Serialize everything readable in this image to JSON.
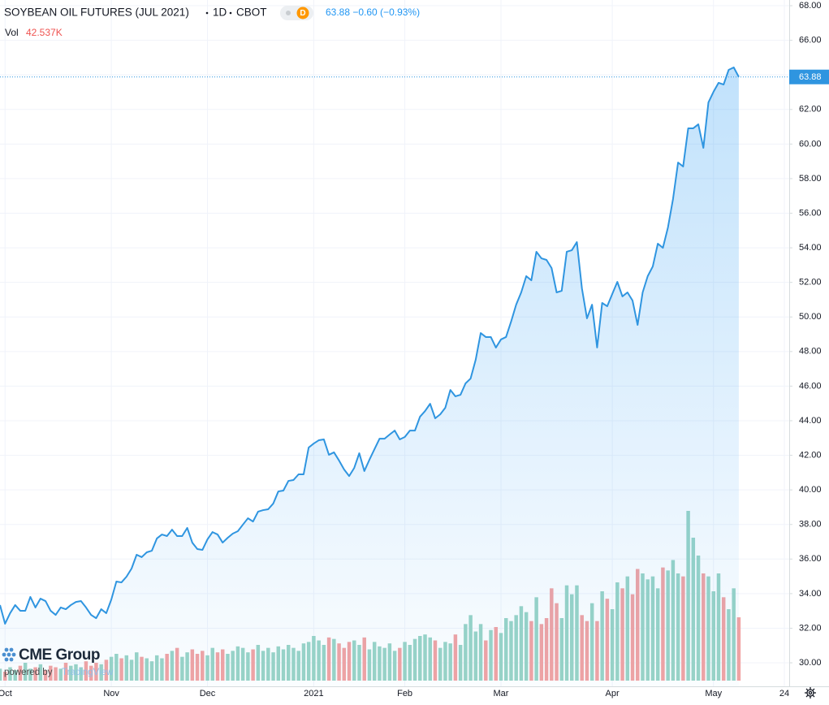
{
  "chart_data": {
    "type": "line",
    "title": "SOYBEAN OIL FUTURES (JUL 2021)",
    "interval": "1D",
    "exchange": "CBOT",
    "badge": "D",
    "quote": "63.88 −0.60 (−0.93%)",
    "volume_title": "Vol",
    "volume_text": "42.537K",
    "last_label": "63.88",
    "logo": "CME Group",
    "powered_by": "powered by",
    "powered_brand": "TradingView",
    "color": "#2f95e0",
    "grid": true,
    "ylim": [
      28.64,
      68.33
    ],
    "yticks": [
      {
        "value": 30,
        "label": "30.00"
      },
      {
        "value": 32,
        "label": "32.00"
      },
      {
        "value": 34,
        "label": "34.00"
      },
      {
        "value": 36,
        "label": "36.00"
      },
      {
        "value": 38,
        "label": "38.00"
      },
      {
        "value": 40,
        "label": "40.00"
      },
      {
        "value": 42,
        "label": "42.00"
      },
      {
        "value": 44,
        "label": "44.00"
      },
      {
        "value": 46,
        "label": "46.00"
      },
      {
        "value": 48,
        "label": "48.00"
      },
      {
        "value": 50,
        "label": "50.00"
      },
      {
        "value": 52,
        "label": "52.00"
      },
      {
        "value": 54,
        "label": "54.00"
      },
      {
        "value": 56,
        "label": "56.00"
      },
      {
        "value": 58,
        "label": "58.00"
      },
      {
        "value": 60,
        "label": "60.00"
      },
      {
        "value": 62,
        "label": "62.00"
      },
      {
        "value": 64,
        "label": "64.00"
      },
      {
        "value": 66,
        "label": "66.00"
      },
      {
        "value": 68,
        "label": "68.00"
      }
    ],
    "categories": [
      null,
      "Oct",
      null,
      null,
      null,
      null,
      null,
      null,
      null,
      null,
      null,
      null,
      null,
      null,
      null,
      null,
      null,
      null,
      null,
      null,
      null,
      null,
      "Nov",
      null,
      null,
      null,
      null,
      null,
      null,
      null,
      null,
      null,
      null,
      null,
      null,
      null,
      null,
      null,
      null,
      null,
      null,
      "Dec",
      null,
      null,
      null,
      null,
      null,
      null,
      null,
      null,
      null,
      null,
      null,
      null,
      null,
      null,
      null,
      null,
      null,
      null,
      null,
      null,
      "2021",
      null,
      null,
      null,
      null,
      null,
      null,
      null,
      null,
      null,
      null,
      null,
      null,
      null,
      null,
      null,
      null,
      null,
      "Feb",
      null,
      null,
      null,
      null,
      null,
      null,
      null,
      null,
      null,
      null,
      null,
      null,
      null,
      null,
      null,
      null,
      null,
      null,
      "Mar",
      null,
      null,
      null,
      null,
      null,
      null,
      null,
      null,
      null,
      null,
      null,
      null,
      null,
      null,
      null,
      null,
      null,
      null,
      null,
      null,
      null,
      "Apr",
      null,
      null,
      null,
      null,
      null,
      null,
      null,
      null,
      null,
      null,
      null,
      null,
      null,
      null,
      null,
      null,
      null,
      null,
      null,
      "May",
      null,
      null,
      null,
      null,
      null,
      null,
      null,
      null,
      null,
      null,
      null,
      null,
      null,
      "24"
    ],
    "values": [
      33.34,
      32.26,
      32.87,
      33.34,
      33.01,
      33.01,
      33.81,
      33.2,
      33.71,
      33.57,
      33.01,
      32.77,
      33.2,
      33.1,
      33.34,
      33.52,
      33.57,
      33.2,
      32.77,
      32.58,
      33.1,
      32.87,
      33.66,
      34.7,
      34.65,
      34.98,
      35.45,
      36.25,
      36.11,
      36.39,
      36.48,
      37.19,
      37.42,
      37.33,
      37.7,
      37.33,
      37.33,
      37.8,
      36.95,
      36.58,
      36.53,
      37.14,
      37.56,
      37.42,
      36.95,
      37.23,
      37.47,
      37.61,
      37.99,
      38.36,
      38.17,
      38.74,
      38.83,
      38.88,
      39.21,
      39.91,
      39.96,
      40.52,
      40.57,
      40.9,
      40.9,
      42.45,
      42.68,
      42.87,
      42.92,
      42.03,
      42.17,
      41.7,
      41.18,
      40.8,
      41.27,
      42.12,
      41.09,
      41.74,
      42.35,
      42.96,
      42.96,
      43.2,
      43.43,
      42.92,
      43.06,
      43.43,
      43.43,
      44.23,
      44.56,
      44.98,
      44.14,
      44.37,
      44.75,
      45.78,
      45.41,
      45.5,
      46.16,
      46.44,
      47.52,
      49.07,
      48.84,
      48.84,
      48.23,
      48.7,
      48.84,
      49.73,
      50.71,
      51.42,
      52.36,
      52.12,
      53.77,
      53.39,
      53.3,
      52.83,
      51.42,
      51.51,
      53.77,
      53.86,
      54.33,
      51.65,
      49.92,
      50.71,
      48.23,
      50.81,
      50.62,
      51.33,
      52.03,
      51.19,
      51.42,
      50.95,
      49.54,
      51.42,
      52.36,
      52.92,
      54.24,
      54.0,
      55.18,
      56.82,
      58.93,
      58.7,
      60.91,
      60.91,
      61.14,
      59.78,
      62.41,
      63.02,
      63.54,
      63.44,
      64.29,
      64.43,
      63.88,
      null,
      null,
      null,
      null,
      null,
      null,
      null,
      null,
      null
    ],
    "volume": {
      "up_color": "#9ad4c6",
      "down_color": "#f2a3a3",
      "values": [
        8,
        6,
        9,
        7,
        10,
        12,
        8,
        9,
        11,
        7,
        10,
        9,
        8,
        12,
        10,
        11,
        9,
        13,
        10,
        12,
        11,
        14,
        16,
        18,
        15,
        17,
        14,
        19,
        16,
        15,
        13,
        17,
        15,
        18,
        20,
        22,
        16,
        19,
        21,
        18,
        20,
        17,
        22,
        19,
        21,
        18,
        20,
        23,
        22,
        19,
        21,
        24,
        20,
        22,
        19,
        23,
        21,
        24,
        22,
        20,
        25,
        26,
        30,
        27,
        24,
        29,
        28,
        25,
        22,
        26,
        27,
        24,
        29,
        21,
        26,
        23,
        22,
        25,
        20,
        22,
        26,
        24,
        28,
        30,
        31,
        29,
        27,
        22,
        26,
        25,
        31,
        24,
        38,
        44,
        33,
        38,
        27,
        34,
        36,
        32,
        42,
        40,
        44,
        50,
        46,
        40,
        56,
        38,
        42,
        62,
        52,
        42,
        64,
        58,
        64,
        44,
        40,
        52,
        40,
        60,
        55,
        48,
        66,
        62,
        70,
        58,
        75,
        72,
        68,
        70,
        62,
        76,
        74,
        81,
        72,
        70,
        114,
        96,
        84,
        72,
        70,
        60,
        72,
        56,
        48,
        62,
        42.537,
        null,
        null,
        null,
        null,
        null,
        null,
        null,
        null,
        null
      ]
    }
  }
}
